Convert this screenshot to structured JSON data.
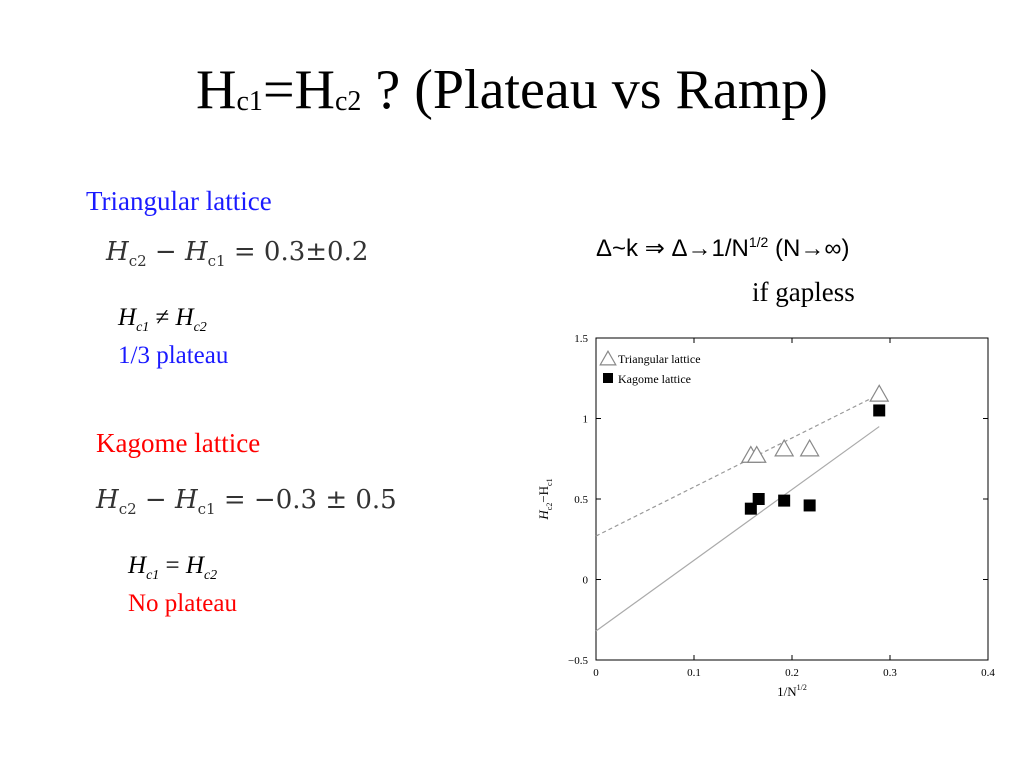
{
  "slide": {
    "title": {
      "h1": "H",
      "c1": "c1",
      "eq": "=H",
      "c2": "c2",
      "rest": " ?  (Plateau vs Ramp)"
    },
    "triangular": {
      "heading": "Triangular lattice",
      "heading_color": "#1a1aff",
      "formula": {
        "h_a": "H",
        "sub_a": "c2",
        "minus": " − ",
        "h_b": "H",
        "sub_b": "c1",
        "rhs": " = 0.3±0.2"
      },
      "relation": {
        "h_a": "H",
        "sub_a": "c1",
        "op": " ≠ ",
        "h_b": "H",
        "sub_b": "c2"
      },
      "note": "1/3 plateau"
    },
    "kagome": {
      "heading": "Kagome lattice",
      "heading_color": "#ff0000",
      "formula": {
        "h_a": "H",
        "sub_a": "c2",
        "minus": " − ",
        "h_b": "H",
        "sub_b": "c1",
        "rhs": " = −0.3 ± 0.5"
      },
      "relation": {
        "h_a": "H",
        "sub_a": "c1",
        "op": " = ",
        "h_b": "H",
        "sub_b": "c2"
      },
      "note": "No plateau"
    },
    "gap": {
      "line_pre": "Δ~k  ⇒  Δ→1/N",
      "line_sup": "1/2",
      "line_post": " (N→∞)",
      "if_gapless": "if gapless"
    }
  },
  "chart_data": {
    "type": "scatter",
    "xlabel": "1/N",
    "xlabel_sup": "1/2",
    "ylabel": "H",
    "ylabel_sub_a": "c2",
    "ylabel_mid": "−H",
    "ylabel_sub_b": "c1",
    "xlim": [
      0,
      0.4
    ],
    "ylim": [
      -0.5,
      1.5
    ],
    "xticks": [
      "0",
      "0.1",
      "0.2",
      "0.3",
      "0.4"
    ],
    "yticks": [
      "−0.5",
      "0",
      "0.5",
      "1",
      "1.5"
    ],
    "legend_position": "top-left",
    "series": [
      {
        "name": "Triangular lattice",
        "marker": "open-triangle",
        "color": "#888888",
        "x": [
          0.158,
          0.164,
          0.192,
          0.218,
          0.289
        ],
        "y": [
          0.77,
          0.77,
          0.81,
          0.81,
          1.15
        ],
        "fit": {
          "x": [
            0,
            0.289
          ],
          "y": [
            0.27,
            1.15
          ],
          "style": "dashed"
        }
      },
      {
        "name": "Kagome lattice",
        "marker": "filled-square",
        "color": "#000000",
        "x": [
          0.158,
          0.166,
          0.192,
          0.218,
          0.289
        ],
        "y": [
          0.44,
          0.5,
          0.49,
          0.46,
          1.05
        ],
        "fit": {
          "x": [
            0,
            0.289
          ],
          "y": [
            -0.32,
            0.95
          ],
          "style": "solid"
        }
      }
    ]
  }
}
